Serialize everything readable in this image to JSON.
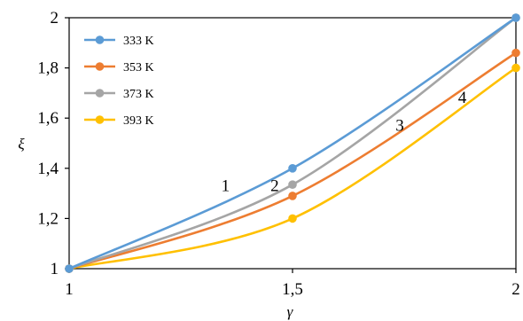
{
  "chart_data": {
    "type": "line",
    "x": [
      1,
      1.5,
      2
    ],
    "series": [
      {
        "name": "333 K",
        "color": "#5b9bd5",
        "values": [
          1.0,
          1.4,
          2.0
        ]
      },
      {
        "name": "353 K",
        "color": "#ed7d31",
        "values": [
          1.0,
          1.29,
          1.86
        ]
      },
      {
        "name": "373 K",
        "color": "#a5a5a5",
        "values": [
          1.0,
          1.335,
          2.0
        ]
      },
      {
        "name": "393 K",
        "color": "#ffc000",
        "values": [
          1.0,
          1.2,
          1.8
        ]
      }
    ],
    "xlabel": "γ",
    "ylabel": "ξ",
    "xlim": [
      1,
      2
    ],
    "ylim": [
      1,
      2
    ],
    "x_ticks": [
      "1",
      "1,5",
      "2"
    ],
    "y_ticks": [
      "1",
      "1,2",
      "1,4",
      "1,6",
      "1,8",
      "2"
    ],
    "annotations": [
      {
        "text": "1",
        "x": 1.35,
        "y": 1.31
      },
      {
        "text": "2",
        "x": 1.46,
        "y": 1.31
      },
      {
        "text": "3",
        "x": 1.74,
        "y": 1.55
      },
      {
        "text": "4",
        "x": 1.88,
        "y": 1.66
      }
    ],
    "legend_position": "top-left",
    "grid": false
  }
}
